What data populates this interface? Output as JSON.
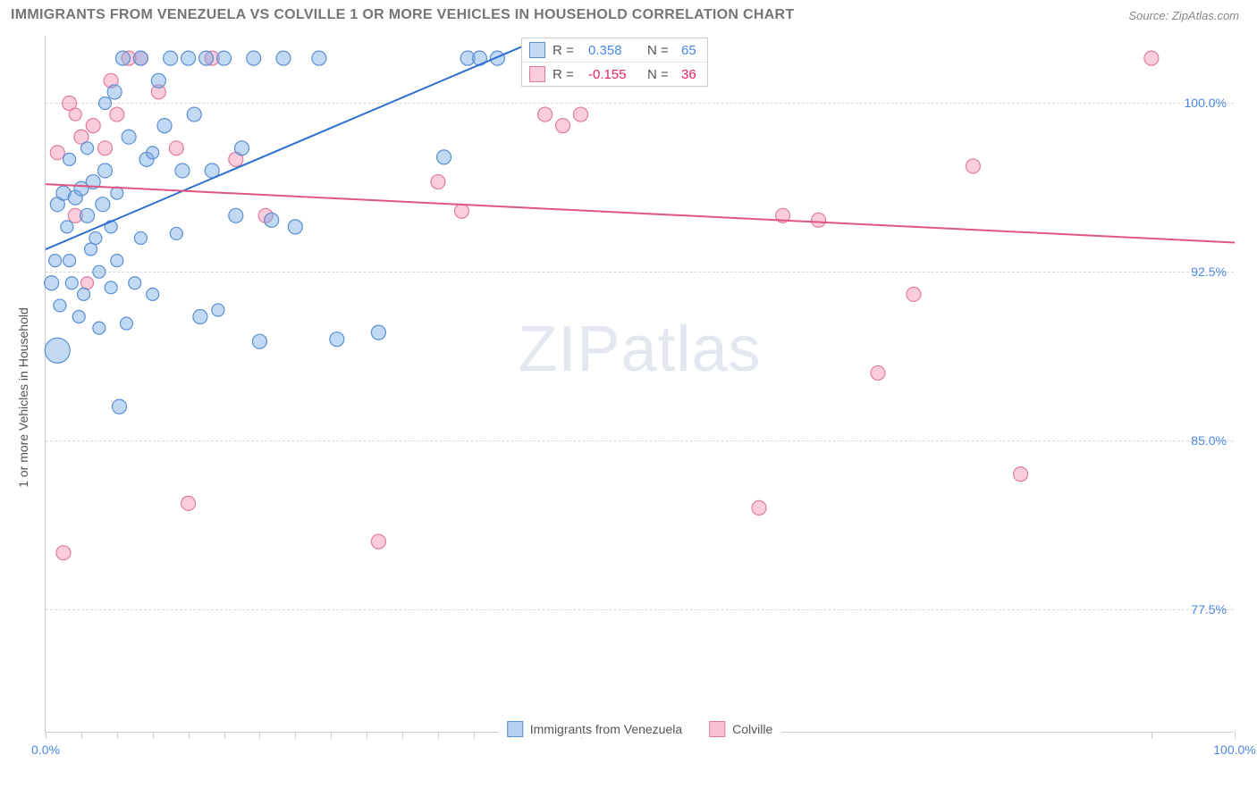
{
  "header": {
    "title": "IMMIGRANTS FROM VENEZUELA VS COLVILLE 1 OR MORE VEHICLES IN HOUSEHOLD CORRELATION CHART",
    "source": "Source: ZipAtlas.com"
  },
  "chart": {
    "type": "scatter",
    "y_label": "1 or more Vehicles in Household",
    "watermark": "ZIPatlas",
    "background_color": "#ffffff",
    "grid_color": "#d8d8d8",
    "axis_color": "#cccccc",
    "x_range": [
      0,
      100
    ],
    "y_range": [
      72,
      103
    ],
    "y_ticks": [
      {
        "value": 77.5,
        "label": "77.5%"
      },
      {
        "value": 85.0,
        "label": "85.0%"
      },
      {
        "value": 92.5,
        "label": "92.5%"
      },
      {
        "value": 100.0,
        "label": "100.0%"
      }
    ],
    "x_ticks": [
      0,
      3,
      6,
      9,
      12,
      15,
      18,
      21,
      24,
      27,
      30,
      33,
      36,
      39,
      45,
      93,
      100
    ],
    "x_labels": [
      {
        "value": 0,
        "label": "0.0%"
      },
      {
        "value": 100,
        "label": "100.0%"
      }
    ],
    "series": [
      {
        "name": "Immigrants from Venezuela",
        "color_fill": "rgba(120, 170, 230, 0.45)",
        "color_stroke": "#5a8fd0",
        "R": "0.358",
        "N": "65",
        "trend": {
          "x1": 0,
          "y1": 93.5,
          "x2": 40,
          "y2": 102.5,
          "color": "#2f6fd0",
          "width": 2
        },
        "points": [
          {
            "x": 0.5,
            "y": 92.0,
            "r": 8
          },
          {
            "x": 0.8,
            "y": 93.0,
            "r": 7
          },
          {
            "x": 1.0,
            "y": 95.5,
            "r": 8
          },
          {
            "x": 1.2,
            "y": 91.0,
            "r": 7
          },
          {
            "x": 1.5,
            "y": 96.0,
            "r": 8
          },
          {
            "x": 1.8,
            "y": 94.5,
            "r": 7
          },
          {
            "x": 2.0,
            "y": 93.0,
            "r": 7
          },
          {
            "x": 2.2,
            "y": 92.0,
            "r": 7
          },
          {
            "x": 2.5,
            "y": 95.8,
            "r": 8
          },
          {
            "x": 2.8,
            "y": 90.5,
            "r": 7
          },
          {
            "x": 3.0,
            "y": 96.2,
            "r": 8
          },
          {
            "x": 3.2,
            "y": 91.5,
            "r": 7
          },
          {
            "x": 3.5,
            "y": 95.0,
            "r": 8
          },
          {
            "x": 3.8,
            "y": 93.5,
            "r": 7
          },
          {
            "x": 4.0,
            "y": 96.5,
            "r": 8
          },
          {
            "x": 4.2,
            "y": 94.0,
            "r": 7
          },
          {
            "x": 4.5,
            "y": 92.5,
            "r": 7
          },
          {
            "x": 4.8,
            "y": 95.5,
            "r": 8
          },
          {
            "x": 5.0,
            "y": 97.0,
            "r": 8
          },
          {
            "x": 5.0,
            "y": 100.0,
            "r": 7
          },
          {
            "x": 5.5,
            "y": 91.8,
            "r": 7
          },
          {
            "x": 5.8,
            "y": 100.5,
            "r": 8
          },
          {
            "x": 6.0,
            "y": 93.0,
            "r": 7
          },
          {
            "x": 6.2,
            "y": 86.5,
            "r": 8
          },
          {
            "x": 6.5,
            "y": 102.0,
            "r": 8
          },
          {
            "x": 6.8,
            "y": 90.2,
            "r": 7
          },
          {
            "x": 7.0,
            "y": 98.5,
            "r": 8
          },
          {
            "x": 7.5,
            "y": 92.0,
            "r": 7
          },
          {
            "x": 8.0,
            "y": 102.0,
            "r": 8
          },
          {
            "x": 8.5,
            "y": 97.5,
            "r": 8
          },
          {
            "x": 9.0,
            "y": 91.5,
            "r": 7
          },
          {
            "x": 9.5,
            "y": 101.0,
            "r": 8
          },
          {
            "x": 10.0,
            "y": 99.0,
            "r": 8
          },
          {
            "x": 10.5,
            "y": 102.0,
            "r": 8
          },
          {
            "x": 11.0,
            "y": 94.2,
            "r": 7
          },
          {
            "x": 11.5,
            "y": 97.0,
            "r": 8
          },
          {
            "x": 12.0,
            "y": 102.0,
            "r": 8
          },
          {
            "x": 12.5,
            "y": 99.5,
            "r": 8
          },
          {
            "x": 13.0,
            "y": 90.5,
            "r": 8
          },
          {
            "x": 13.5,
            "y": 102.0,
            "r": 8
          },
          {
            "x": 14.0,
            "y": 97.0,
            "r": 8
          },
          {
            "x": 14.5,
            "y": 90.8,
            "r": 7
          },
          {
            "x": 15.0,
            "y": 102.0,
            "r": 8
          },
          {
            "x": 16.0,
            "y": 95.0,
            "r": 8
          },
          {
            "x": 16.5,
            "y": 98.0,
            "r": 8
          },
          {
            "x": 17.5,
            "y": 102.0,
            "r": 8
          },
          {
            "x": 18.0,
            "y": 89.4,
            "r": 8
          },
          {
            "x": 19.0,
            "y": 94.8,
            "r": 8
          },
          {
            "x": 20.0,
            "y": 102.0,
            "r": 8
          },
          {
            "x": 21.0,
            "y": 94.5,
            "r": 8
          },
          {
            "x": 23.0,
            "y": 102.0,
            "r": 8
          },
          {
            "x": 24.5,
            "y": 89.5,
            "r": 8
          },
          {
            "x": 28.0,
            "y": 89.8,
            "r": 8
          },
          {
            "x": 33.5,
            "y": 97.6,
            "r": 8
          },
          {
            "x": 35.5,
            "y": 102.0,
            "r": 8
          },
          {
            "x": 36.5,
            "y": 102.0,
            "r": 8
          },
          {
            "x": 38.0,
            "y": 102.0,
            "r": 8
          },
          {
            "x": 1.0,
            "y": 89.0,
            "r": 14
          },
          {
            "x": 2.0,
            "y": 97.5,
            "r": 7
          },
          {
            "x": 3.5,
            "y": 98.0,
            "r": 7
          },
          {
            "x": 4.5,
            "y": 90.0,
            "r": 7
          },
          {
            "x": 6.0,
            "y": 96.0,
            "r": 7
          },
          {
            "x": 8.0,
            "y": 94.0,
            "r": 7
          },
          {
            "x": 9.0,
            "y": 97.8,
            "r": 7
          },
          {
            "x": 5.5,
            "y": 94.5,
            "r": 7
          }
        ]
      },
      {
        "name": "Colville",
        "color_fill": "rgba(244, 143, 177, 0.45)",
        "color_stroke": "#e07ba0",
        "R": "-0.155",
        "N": "36",
        "trend": {
          "x1": 0,
          "y1": 96.4,
          "x2": 100,
          "y2": 93.8,
          "color": "#e0557f",
          "width": 2
        },
        "points": [
          {
            "x": 1.0,
            "y": 97.8,
            "r": 8
          },
          {
            "x": 1.5,
            "y": 80.0,
            "r": 8
          },
          {
            "x": 2.0,
            "y": 100.0,
            "r": 8
          },
          {
            "x": 2.5,
            "y": 95.0,
            "r": 8
          },
          {
            "x": 3.0,
            "y": 98.5,
            "r": 8
          },
          {
            "x": 3.5,
            "y": 92.0,
            "r": 7
          },
          {
            "x": 4.0,
            "y": 99.0,
            "r": 8
          },
          {
            "x": 5.0,
            "y": 98.0,
            "r": 8
          },
          {
            "x": 5.5,
            "y": 101.0,
            "r": 8
          },
          {
            "x": 6.0,
            "y": 99.5,
            "r": 8
          },
          {
            "x": 7.0,
            "y": 102.0,
            "r": 8
          },
          {
            "x": 8.0,
            "y": 102.0,
            "r": 8
          },
          {
            "x": 9.5,
            "y": 100.5,
            "r": 8
          },
          {
            "x": 11.0,
            "y": 98.0,
            "r": 8
          },
          {
            "x": 12.0,
            "y": 82.2,
            "r": 8
          },
          {
            "x": 14.0,
            "y": 102.0,
            "r": 8
          },
          {
            "x": 16.0,
            "y": 97.5,
            "r": 8
          },
          {
            "x": 18.5,
            "y": 95.0,
            "r": 8
          },
          {
            "x": 28.0,
            "y": 80.5,
            "r": 8
          },
          {
            "x": 33.0,
            "y": 96.5,
            "r": 8
          },
          {
            "x": 35.0,
            "y": 95.2,
            "r": 8
          },
          {
            "x": 42.0,
            "y": 99.5,
            "r": 8
          },
          {
            "x": 43.5,
            "y": 99.0,
            "r": 8
          },
          {
            "x": 45.0,
            "y": 99.5,
            "r": 8
          },
          {
            "x": 46.0,
            "y": 102.0,
            "r": 8
          },
          {
            "x": 48.0,
            "y": 101.5,
            "r": 8
          },
          {
            "x": 50.0,
            "y": 102.0,
            "r": 8
          },
          {
            "x": 60.0,
            "y": 82.0,
            "r": 8
          },
          {
            "x": 62.0,
            "y": 95.0,
            "r": 8
          },
          {
            "x": 65.0,
            "y": 94.8,
            "r": 8
          },
          {
            "x": 70.0,
            "y": 88.0,
            "r": 8
          },
          {
            "x": 73.0,
            "y": 91.5,
            "r": 8
          },
          {
            "x": 78.0,
            "y": 97.2,
            "r": 8
          },
          {
            "x": 82.0,
            "y": 83.5,
            "r": 8
          },
          {
            "x": 93.0,
            "y": 102.0,
            "r": 8
          },
          {
            "x": 2.5,
            "y": 99.5,
            "r": 7
          }
        ]
      }
    ],
    "legend_bottom": [
      {
        "label": "Immigrants from Venezuela",
        "fill": "rgba(120, 170, 230, 0.55)",
        "stroke": "#5a8fd0"
      },
      {
        "label": "Colville",
        "fill": "rgba(244, 143, 177, 0.55)",
        "stroke": "#e07ba0"
      }
    ]
  }
}
